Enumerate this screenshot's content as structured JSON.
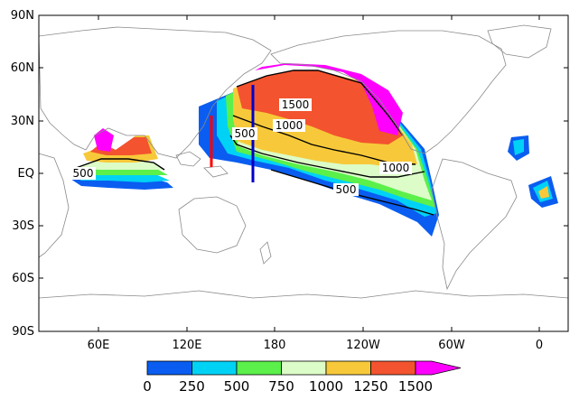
{
  "map": {
    "lat_ticks": [
      "90N",
      "60N",
      "30N",
      "EQ",
      "30S",
      "60S",
      "90S"
    ],
    "lon_ticks": [
      "60E",
      "120E",
      "180",
      "120W",
      "60W",
      "0"
    ],
    "contour_labels": [
      "1500",
      "1000",
      "500",
      "1000",
      "500",
      "500"
    ],
    "shading_colors": [
      "#0a5df0",
      "#00d2f5",
      "#5bf04a",
      "#dcfcc8",
      "#f7c93a",
      "#f3532f",
      "#ff00ff"
    ],
    "markers": [
      {
        "name": "red-transect",
        "color": "#ff0000"
      },
      {
        "name": "blue-transect",
        "color": "#0000c8"
      }
    ]
  },
  "colorbar": {
    "labels": [
      "0",
      "250",
      "500",
      "750",
      "1000",
      "1250",
      "1500"
    ],
    "colors": [
      "#0a5df0",
      "#00d2f5",
      "#5bf04a",
      "#dcfcc8",
      "#f7c93a",
      "#f3532f",
      "#ff00ff"
    ]
  }
}
